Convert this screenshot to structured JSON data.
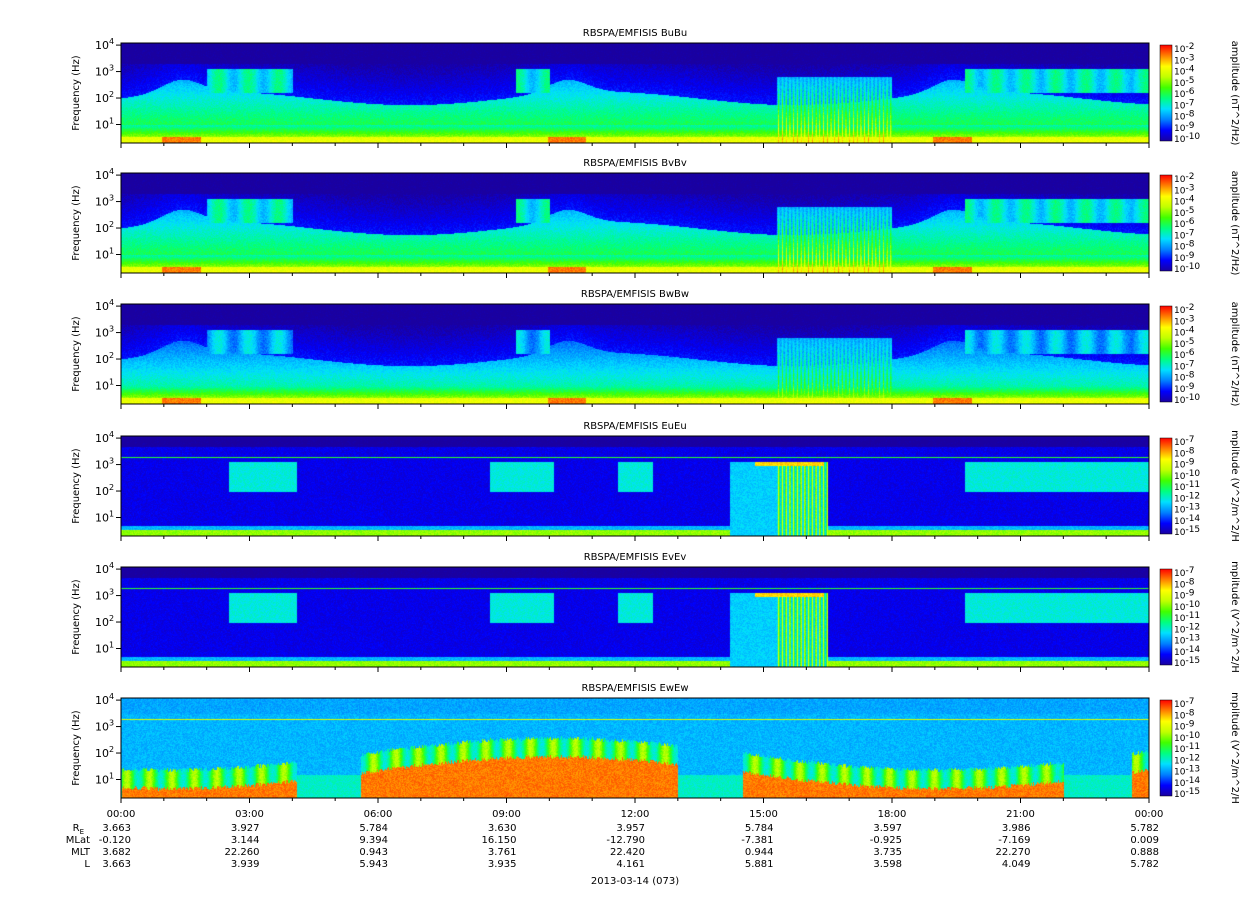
{
  "chart_data": {
    "type": "heatmap",
    "x_tick_labels": [
      "00:00",
      "03:00",
      "06:00",
      "09:00",
      "12:00",
      "15:00",
      "18:00",
      "21:00",
      "00:00"
    ],
    "x_hours": [
      0,
      3,
      6,
      9,
      12,
      15,
      18,
      21,
      24
    ],
    "date_label": "2013-03-14 (073)",
    "ylabel": "Frequency (Hz)",
    "y_scale": "log",
    "ylim_hz": [
      2,
      12000
    ],
    "y_ticks": [
      {
        "base": "10",
        "exp": "1",
        "value": 10
      },
      {
        "base": "10",
        "exp": "2",
        "value": 100
      },
      {
        "base": "10",
        "exp": "3",
        "value": 1000
      },
      {
        "base": "10",
        "exp": "4",
        "value": 10000
      }
    ],
    "colormap": [
      "#1a00a0",
      "#0000ff",
      "#0080ff",
      "#00e0ff",
      "#00ff80",
      "#40ff00",
      "#c0ff00",
      "#ffff00",
      "#ff8000",
      "#ff0000"
    ],
    "panels": [
      {
        "title": "RBSPA/EMFISIS  BuBu",
        "cbar_label": "amplitude (nT^2/Hz)",
        "cbar_exps": [
          "-2",
          "-3",
          "-4",
          "-5",
          "-6",
          "-7",
          "-8",
          "-9",
          "-10"
        ],
        "style": "B"
      },
      {
        "title": "RBSPA/EMFISIS  BvBv",
        "cbar_label": "amplitude (nT^2/Hz)",
        "cbar_exps": [
          "-2",
          "-3",
          "-4",
          "-5",
          "-6",
          "-7",
          "-8",
          "-9",
          "-10"
        ],
        "style": "B"
      },
      {
        "title": "RBSPA/EMFISIS  BwBw",
        "cbar_label": "amplitude (nT^2/Hz)",
        "cbar_exps": [
          "-2",
          "-3",
          "-4",
          "-5",
          "-6",
          "-7",
          "-8",
          "-9",
          "-10"
        ],
        "style": "Bw"
      },
      {
        "title": "RBSPA/EMFISIS  EuEu",
        "cbar_label": "mplitude (V^2/m^2/H",
        "cbar_exps": [
          "-7",
          "-8",
          "-9",
          "-10",
          "-11",
          "-12",
          "-13",
          "-14",
          "-15"
        ],
        "style": "E"
      },
      {
        "title": "RBSPA/EMFISIS  EvEv",
        "cbar_label": "mplitude (V^2/m^2/H",
        "cbar_exps": [
          "-7",
          "-8",
          "-9",
          "-10",
          "-11",
          "-12",
          "-13",
          "-14",
          "-15"
        ],
        "style": "E"
      },
      {
        "title": "RBSPA/EMFISIS  EwEw",
        "cbar_label": "mplitude (V^2/m^2/H",
        "cbar_exps": [
          "-7",
          "-8",
          "-9",
          "-10",
          "-11",
          "-12",
          "-13",
          "-14",
          "-15"
        ],
        "style": "Ew"
      }
    ],
    "ephemeris": [
      {
        "label": "R",
        "sub": "E",
        "values": [
          "3.663",
          "3.927",
          "5.784",
          "3.630",
          "3.957",
          "5.784",
          "3.597",
          "3.986",
          "5.782"
        ]
      },
      {
        "label": "MLat",
        "sub": "",
        "values": [
          "-0.120",
          "3.144",
          "9.394",
          "16.150",
          "-12.790",
          "-7.381",
          "-0.925",
          "-7.169",
          "0.009"
        ]
      },
      {
        "label": "MLT",
        "sub": "",
        "values": [
          "3.682",
          "22.260",
          "0.943",
          "3.761",
          "22.420",
          "0.944",
          "3.735",
          "22.270",
          "0.888"
        ]
      },
      {
        "label": "L",
        "sub": "",
        "values": [
          "3.663",
          "3.939",
          "5.943",
          "3.935",
          "4.161",
          "5.881",
          "3.598",
          "4.049",
          "5.782"
        ]
      }
    ]
  }
}
